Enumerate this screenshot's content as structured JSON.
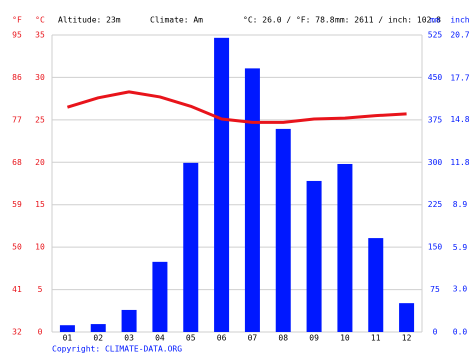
{
  "chart_data": {
    "type": "climate",
    "header": {
      "fahrenheit_unit": "°F",
      "celsius_unit": "°C",
      "altitude": "Altitude: 23m",
      "climate": "Climate: Am",
      "temperature_summary": "°C: 26.0 / °F: 78.8",
      "precipitation_summary": "mm: 2611 / inch: 102.8",
      "mm_unit": "mm",
      "inch_unit": "inch"
    },
    "categories": [
      "01",
      "02",
      "03",
      "04",
      "05",
      "06",
      "07",
      "08",
      "09",
      "10",
      "11",
      "12"
    ],
    "precipitation": {
      "color": "#0018ff",
      "axis": "y2",
      "values": [
        12,
        14,
        39,
        124,
        299,
        520,
        466,
        359,
        267,
        297,
        166,
        51
      ]
    },
    "temperature": {
      "color": "#e8141b",
      "values": [
        26.5,
        27.6,
        28.3,
        27.7,
        26.6,
        25.1,
        24.7,
        24.7,
        25.1,
        25.2,
        25.5,
        25.7
      ]
    },
    "ylim": [
      0,
      35
    ],
    "yticks": [
      0,
      5,
      10,
      15,
      20,
      25,
      30,
      35
    ],
    "yflim": [
      32,
      95
    ],
    "yfticks": [
      32,
      41,
      50,
      59,
      68,
      77,
      86,
      95
    ],
    "y2lim": [
      0,
      525
    ],
    "y2ticks": [
      0,
      75,
      150,
      225,
      300,
      375,
      450,
      525
    ],
    "y3lim": [
      0,
      20.7
    ],
    "y3ticks": [
      {
        "value": 0,
        "label": "0.0"
      },
      {
        "value": 3.0,
        "label": "3.0"
      },
      5.9,
      8.9,
      11.8,
      14.8,
      17.7,
      20.7
    ],
    "grid": true,
    "copyright": "Copyright: CLIMATE-DATA.ORG"
  }
}
